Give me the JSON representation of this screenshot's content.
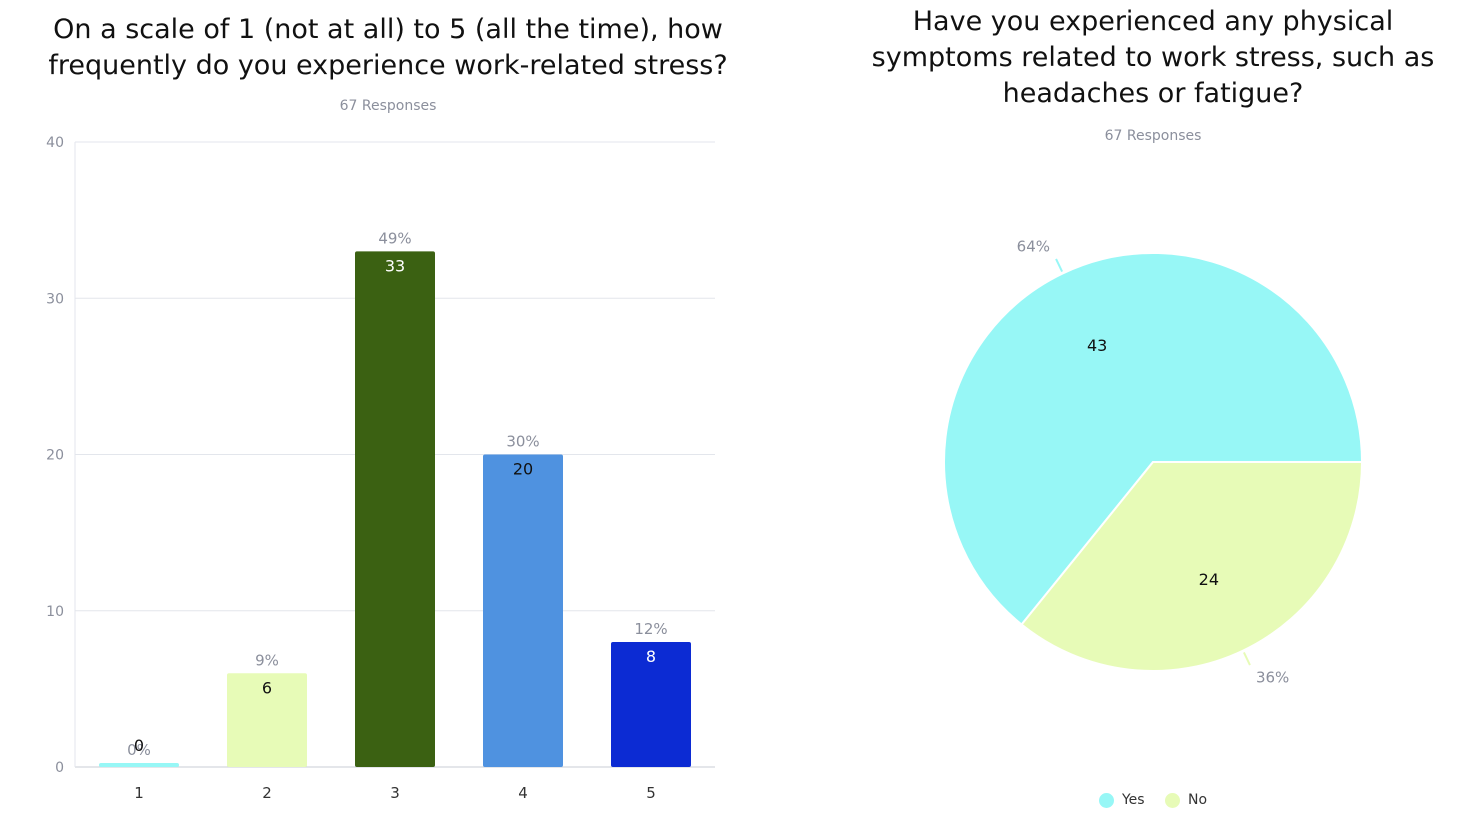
{
  "chart_data": [
    {
      "type": "bar",
      "title": "On a scale of 1 (not at all) to 5 (all the time), how\nfrequently do you experience work-related stress?",
      "subtitle": "67 Responses",
      "categories": [
        "1",
        "2",
        "3",
        "4",
        "5"
      ],
      "values": [
        0,
        6,
        33,
        20,
        8
      ],
      "percent_labels": [
        "0%",
        "9%",
        "49%",
        "30%",
        "12%"
      ],
      "colors": [
        "#97f7f6",
        "#e7fbb7",
        "#3b6112",
        "#4f92e0",
        "#0c2bd3"
      ],
      "value_label_colors": [
        "#111111",
        "#111111",
        "#ffffff",
        "#111111",
        "#ffffff"
      ],
      "ylim": [
        0,
        40
      ],
      "yticks": [
        0,
        10,
        20,
        30,
        40
      ],
      "ytick_labels": [
        "0",
        "10",
        "20",
        "30",
        "40"
      ],
      "grid": true,
      "xlabel": "",
      "ylabel": ""
    },
    {
      "type": "pie",
      "title": "Have you experienced any physical\nsymptoms related to work stress, such as\nheadaches or fatigue?",
      "subtitle": "67 Responses",
      "labels": [
        "Yes",
        "No"
      ],
      "values": [
        43,
        24
      ],
      "percent_labels": [
        "64%",
        "36%"
      ],
      "colors": [
        "#97f7f6",
        "#e7fbb7"
      ],
      "legend_position": "bottom"
    }
  ]
}
